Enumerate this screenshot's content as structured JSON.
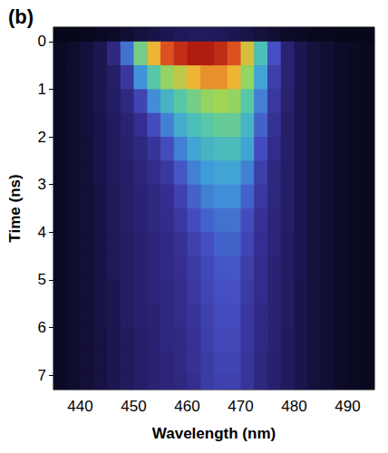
{
  "chart_data": {
    "type": "heatmap",
    "title": "(b)",
    "x_label": "Wavelength (nm)",
    "y_label": "Time (ns)",
    "xlim": [
      435,
      495
    ],
    "ylim": [
      -0.3,
      7.3
    ],
    "xticks": [
      440,
      450,
      460,
      470,
      480,
      490
    ],
    "yticks": [
      0,
      1,
      2,
      3,
      4,
      5,
      6,
      7
    ],
    "x": [
      436.25,
      438.75,
      441.25,
      443.75,
      446.25,
      448.75,
      451.25,
      453.75,
      456.25,
      458.75,
      461.25,
      463.75,
      466.25,
      468.75,
      471.25,
      473.75,
      476.25,
      478.75,
      481.25,
      483.75,
      486.25,
      488.75,
      491.25,
      493.75
    ],
    "y": [
      -0.25,
      0.25,
      0.75,
      1.25,
      1.75,
      2.25,
      2.75,
      3.25,
      3.75,
      4.25,
      4.75,
      5.25,
      5.75,
      6.25,
      6.75,
      7.25
    ],
    "cells": [
      [
        3,
        3,
        4,
        5,
        6,
        8,
        10,
        12,
        14,
        15,
        16,
        16,
        15,
        14,
        12,
        10,
        8,
        6,
        5,
        4,
        4,
        3,
        3,
        3
      ],
      [
        5,
        7,
        10,
        14,
        22,
        40,
        62,
        78,
        88,
        95,
        100,
        100,
        96,
        88,
        75,
        55,
        35,
        20,
        14,
        10,
        8,
        6,
        5,
        4
      ],
      [
        5,
        7,
        10,
        14,
        18,
        28,
        45,
        58,
        66,
        72,
        78,
        82,
        82,
        78,
        66,
        48,
        30,
        20,
        14,
        10,
        8,
        6,
        5,
        4
      ],
      [
        5,
        7,
        10,
        14,
        17,
        22,
        32,
        44,
        52,
        58,
        62,
        66,
        68,
        66,
        58,
        42,
        28,
        19,
        14,
        10,
        8,
        6,
        5,
        4
      ],
      [
        5,
        7,
        10,
        13,
        16,
        20,
        25,
        34,
        42,
        50,
        55,
        58,
        60,
        60,
        52,
        38,
        26,
        18,
        14,
        10,
        8,
        6,
        5,
        4
      ],
      [
        5,
        7,
        9,
        13,
        16,
        19,
        22,
        27,
        34,
        42,
        48,
        52,
        54,
        54,
        48,
        34,
        24,
        18,
        14,
        10,
        8,
        6,
        5,
        4
      ],
      [
        5,
        7,
        9,
        13,
        16,
        18,
        21,
        24,
        28,
        36,
        42,
        46,
        48,
        48,
        42,
        30,
        22,
        18,
        14,
        10,
        8,
        6,
        5,
        4
      ],
      [
        5,
        7,
        9,
        12,
        15,
        18,
        20,
        22,
        25,
        31,
        38,
        42,
        44,
        44,
        38,
        28,
        22,
        18,
        14,
        10,
        8,
        6,
        5,
        4
      ],
      [
        5,
        7,
        9,
        12,
        15,
        18,
        20,
        22,
        24,
        28,
        34,
        38,
        40,
        40,
        34,
        26,
        21,
        18,
        14,
        10,
        8,
        6,
        5,
        4
      ],
      [
        5,
        7,
        9,
        12,
        15,
        17,
        19,
        21,
        23,
        26,
        31,
        35,
        38,
        38,
        32,
        25,
        21,
        17,
        14,
        10,
        8,
        6,
        5,
        4
      ],
      [
        5,
        7,
        9,
        12,
        15,
        17,
        19,
        21,
        23,
        25,
        29,
        33,
        36,
        36,
        30,
        24,
        20,
        17,
        14,
        10,
        8,
        6,
        5,
        4
      ],
      [
        5,
        7,
        9,
        12,
        14,
        17,
        19,
        21,
        22,
        24,
        28,
        32,
        35,
        35,
        29,
        24,
        20,
        17,
        13,
        10,
        8,
        6,
        5,
        4
      ],
      [
        5,
        7,
        9,
        12,
        14,
        17,
        19,
        20,
        22,
        24,
        27,
        31,
        34,
        34,
        28,
        23,
        20,
        17,
        13,
        10,
        8,
        6,
        5,
        4
      ],
      [
        5,
        7,
        9,
        11,
        14,
        16,
        18,
        20,
        22,
        23,
        26,
        30,
        33,
        33,
        28,
        23,
        20,
        16,
        13,
        10,
        8,
        6,
        5,
        4
      ],
      [
        5,
        7,
        9,
        11,
        14,
        16,
        18,
        20,
        21,
        23,
        26,
        29,
        32,
        32,
        27,
        22,
        19,
        16,
        13,
        10,
        8,
        6,
        5,
        4
      ],
      [
        5,
        7,
        9,
        11,
        14,
        16,
        18,
        20,
        21,
        22,
        25,
        29,
        31,
        31,
        27,
        22,
        19,
        16,
        13,
        10,
        8,
        6,
        5,
        4
      ]
    ]
  }
}
